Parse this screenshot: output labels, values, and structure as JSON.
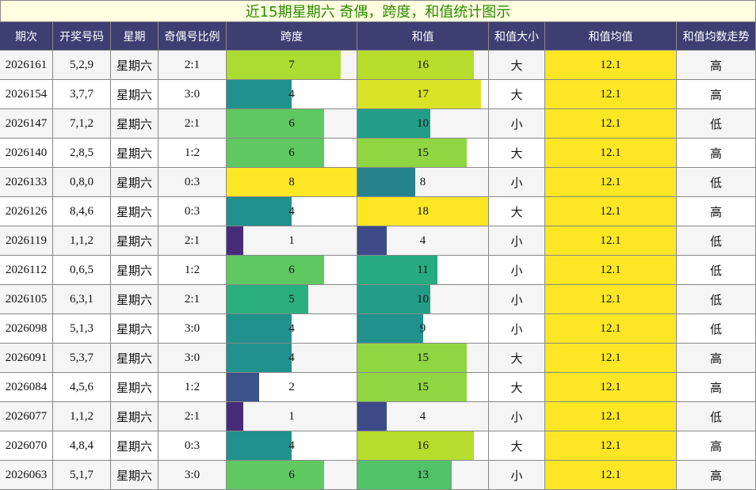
{
  "title": "近15期星期六 奇偶，跨度，和值统计图示",
  "table": {
    "headers": [
      "期次",
      "开奖号码",
      "星期",
      "奇偶号比例",
      "跨度",
      "和值",
      "和值大小",
      "和值均值",
      "和值均数走势"
    ],
    "bar_columns": [
      4,
      5
    ],
    "highlight_column": 7,
    "highlight_color": "#fde725",
    "colormap": "viridis",
    "rows": [
      [
        "2026161",
        "5,2,9",
        "星期六",
        "2:1",
        7,
        16,
        "大",
        12.1,
        "高"
      ],
      [
        "2026154",
        "3,7,7",
        "星期六",
        "3:0",
        4,
        17,
        "大",
        12.1,
        "高"
      ],
      [
        "2026147",
        "7,1,2",
        "星期六",
        "2:1",
        6,
        10,
        "小",
        12.1,
        "低"
      ],
      [
        "2026140",
        "2,8,5",
        "星期六",
        "1:2",
        6,
        15,
        "大",
        12.1,
        "高"
      ],
      [
        "2026133",
        "0,8,0",
        "星期六",
        "0:3",
        8,
        8,
        "小",
        12.1,
        "低"
      ],
      [
        "2026126",
        "8,4,6",
        "星期六",
        "0:3",
        4,
        18,
        "大",
        12.1,
        "高"
      ],
      [
        "2026119",
        "1,1,2",
        "星期六",
        "2:1",
        1,
        4,
        "小",
        12.1,
        "低"
      ],
      [
        "2026112",
        "0,6,5",
        "星期六",
        "1:2",
        6,
        11,
        "小",
        12.1,
        "低"
      ],
      [
        "2026105",
        "6,3,1",
        "星期六",
        "2:1",
        5,
        10,
        "小",
        12.1,
        "低"
      ],
      [
        "2026098",
        "5,1,3",
        "星期六",
        "3:0",
        4,
        9,
        "小",
        12.1,
        "低"
      ],
      [
        "2026091",
        "5,3,7",
        "星期六",
        "3:0",
        4,
        15,
        "大",
        12.1,
        "高"
      ],
      [
        "2026084",
        "4,5,6",
        "星期六",
        "1:2",
        2,
        15,
        "大",
        12.1,
        "高"
      ],
      [
        "2026077",
        "1,1,2",
        "星期六",
        "2:1",
        1,
        4,
        "小",
        12.1,
        "低"
      ],
      [
        "2026070",
        "4,8,4",
        "星期六",
        "0:3",
        4,
        16,
        "大",
        12.1,
        "高"
      ],
      [
        "2026063",
        "5,1,7",
        "星期六",
        "3:0",
        6,
        13,
        "小",
        12.1,
        "高"
      ]
    ]
  }
}
